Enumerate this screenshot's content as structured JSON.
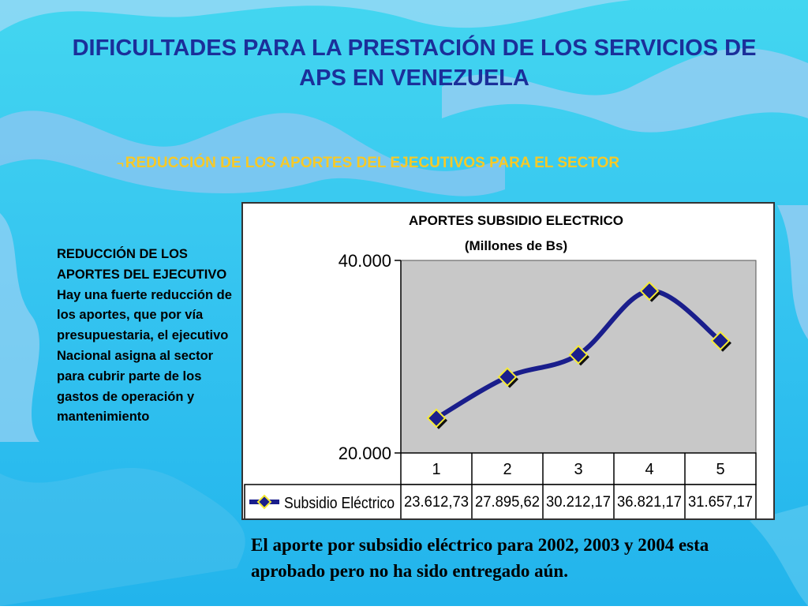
{
  "slide": {
    "title": "DIFICULTADES PARA LA PRESTACIÓN DE LOS SERVICIOS DE APS EN VENEZUELA",
    "subtitle_bullet": "¬",
    "subtitle": "REDUCCIÓN DE LOS APORTES DEL EJECUTIVOS PARA EL SECTOR",
    "side_text": "REDUCCIÓN DE LOS APORTES DEL EJECUTIVO  Hay una fuerte reducción de los aportes, que por vía presupuestaria, el ejecutivo Nacional asigna al sector para cubrir parte de los gastos de operación y mantenimiento",
    "footnote": "El aporte por subsidio eléctrico para 2002, 2003 y 2004 esta aprobado pero no ha sido entregado aún."
  },
  "colors": {
    "title": "#1b2f9a",
    "subtitle": "#f7c927",
    "series_line": "#1a1e8c",
    "marker_fill": "#1a1e8c",
    "marker_edge": "#f5ea36",
    "plot_area": "#c8c8c8"
  },
  "chart_data": {
    "type": "line",
    "title": "APORTES SUBSIDIO ELECTRICO",
    "subtitle": "(Millones de Bs)",
    "categories": [
      "1",
      "2",
      "3",
      "4",
      "5"
    ],
    "series": [
      {
        "name": "Subsidio Eléctrico",
        "values": [
          23612.73,
          27895.62,
          30212.17,
          36821.17,
          31657.17
        ],
        "value_labels": [
          "23.612,73",
          "27.895,62",
          "30.212,17",
          "36.821,17",
          "31.657,17"
        ]
      }
    ],
    "y_ticks": [
      "20.000",
      "40.000"
    ],
    "ylim": [
      20000,
      40000
    ],
    "grid": false,
    "legend": "data table below chart",
    "smoothed": true,
    "marker": "diamond"
  }
}
